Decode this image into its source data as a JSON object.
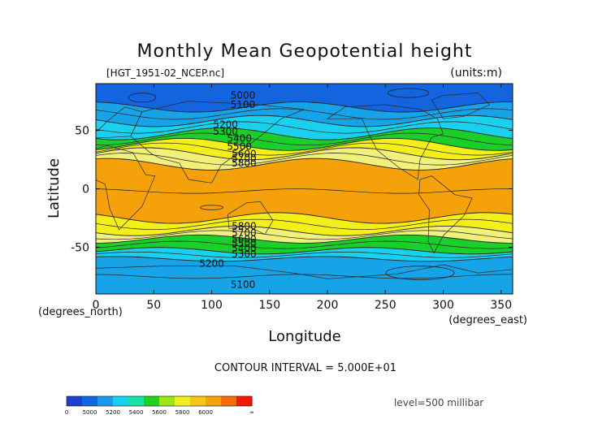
{
  "chart_data": {
    "type": "contour",
    "title": "Monthly Mean Geopotential height",
    "source_label": "[HGT_1951-02_NCEP.nc]",
    "units_label": "(units:m)",
    "xlabel": "Longitude",
    "ylabel": "Latitude",
    "x_units": "(degrees_east)",
    "y_units": "(degrees_north)",
    "xlim": [
      0,
      360
    ],
    "ylim": [
      -90,
      90
    ],
    "x_ticks": [
      0,
      50,
      100,
      150,
      200,
      250,
      300,
      350
    ],
    "y_ticks": [
      50,
      0,
      -50
    ],
    "contour_interval_text": "CONTOUR INTERVAL = 5.000E+01",
    "level_text": "level=500 millibar",
    "contour_labels": [
      {
        "text": "5000",
        "lon": 127,
        "lat": 80
      },
      {
        "text": "5100",
        "lon": 127,
        "lat": 72
      },
      {
        "text": "5200",
        "lon": 112,
        "lat": 55
      },
      {
        "text": "5300",
        "lon": 112,
        "lat": 49
      },
      {
        "text": "5400",
        "lon": 124,
        "lat": 43
      },
      {
        "text": "5500",
        "lon": 124,
        "lat": 36
      },
      {
        "text": "5600",
        "lon": 128,
        "lat": 30
      },
      {
        "text": "5700",
        "lon": 128,
        "lat": 26
      },
      {
        "text": "5800",
        "lon": 128,
        "lat": 22
      },
      {
        "text": "5800",
        "lon": 128,
        "lat": -32
      },
      {
        "text": "5700",
        "lon": 128,
        "lat": -38
      },
      {
        "text": "5600",
        "lon": 128,
        "lat": -43
      },
      {
        "text": "5500",
        "lon": 128,
        "lat": -47
      },
      {
        "text": "5400",
        "lon": 128,
        "lat": -51
      },
      {
        "text": "5300",
        "lon": 128,
        "lat": -56
      },
      {
        "text": "5200",
        "lon": 100,
        "lat": -64
      },
      {
        "text": "5100",
        "lon": 127,
        "lat": -82
      }
    ],
    "bands": [
      {
        "top_lat": 90,
        "bottom_lat": 70,
        "color": "#1464e0"
      },
      {
        "top_lat": 70,
        "bottom_lat": 58,
        "color": "#16a3e8"
      },
      {
        "top_lat": 58,
        "bottom_lat": 47,
        "color": "#19d1ef"
      },
      {
        "top_lat": 47,
        "bottom_lat": 38,
        "color": "#1bcf2a"
      },
      {
        "top_lat": 38,
        "bottom_lat": 30,
        "color": "#f4ef18"
      },
      {
        "top_lat": 30,
        "bottom_lat": 21,
        "color": "#f1f07a"
      },
      {
        "top_lat": 21,
        "bottom_lat": -25,
        "color": "#f5a10a"
      },
      {
        "top_lat": -25,
        "bottom_lat": -36,
        "color": "#f4ef18"
      },
      {
        "top_lat": -36,
        "bottom_lat": -43,
        "color": "#f1f07a"
      },
      {
        "top_lat": -43,
        "bottom_lat": -53,
        "color": "#1bcf2a"
      },
      {
        "top_lat": -53,
        "bottom_lat": -60,
        "color": "#19d1ef"
      },
      {
        "top_lat": -60,
        "bottom_lat": -90,
        "color": "#16a3e8"
      }
    ],
    "colorbar": {
      "labels": [
        "0",
        "5000",
        "5200",
        "5400",
        "5600",
        "5800",
        "6000",
        "∞"
      ],
      "colors": [
        "#1c3fcf",
        "#1466e0",
        "#1b98ea",
        "#19d0ee",
        "#14e5a6",
        "#21cf21",
        "#9fe414",
        "#f2f01b",
        "#f5c60f",
        "#f4a10a",
        "#f56b09",
        "#f21a06"
      ]
    }
  }
}
